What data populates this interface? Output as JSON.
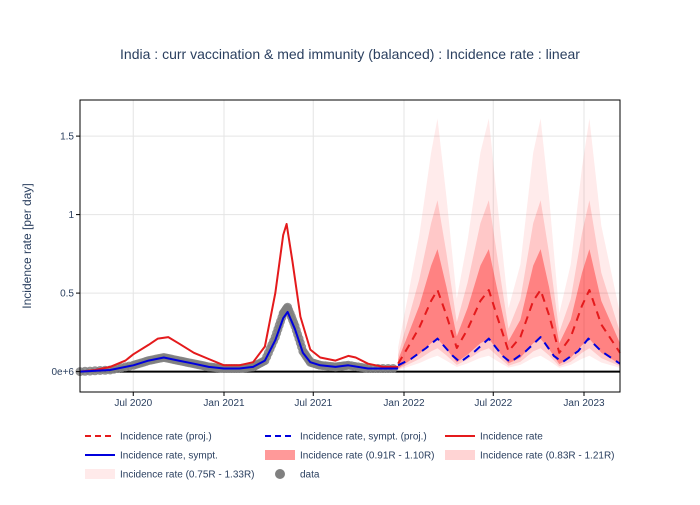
{
  "chart_data": {
    "type": "line",
    "title": "India : curr vaccination & med immunity (balanced) : Incidence rate : linear",
    "xlabel": "",
    "ylabel": "Incidence rate [per day]",
    "x_range": [
      "2020-03-15",
      "2023-03-15"
    ],
    "ylim": [
      -0.13,
      1.73
    ],
    "x_ticks": [
      {
        "date": "2020-07-01",
        "label": "Jul 2020"
      },
      {
        "date": "2021-01-01",
        "label": "Jan 2021"
      },
      {
        "date": "2021-07-01",
        "label": "Jul 2021"
      },
      {
        "date": "2022-01-01",
        "label": "Jan 2022"
      },
      {
        "date": "2022-07-01",
        "label": "Jul 2022"
      },
      {
        "date": "2023-01-01",
        "label": "Jan 2023"
      }
    ],
    "y_ticks": [
      {
        "value": 0,
        "label": "0e+6"
      },
      {
        "value": 0.5,
        "label": "0.5"
      },
      {
        "value": 1,
        "label": "1"
      },
      {
        "value": 1.5,
        "label": "1.5"
      }
    ],
    "series": [
      {
        "name": "Incidence rate (proj.)",
        "style": "dashed",
        "color": "#e41a1c",
        "points": [
          [
            "2021-12-20",
            0.05
          ],
          [
            "2022-01-10",
            0.16
          ],
          [
            "2022-02-01",
            0.28
          ],
          [
            "2022-02-25",
            0.45
          ],
          [
            "2022-03-10",
            0.52
          ],
          [
            "2022-03-28",
            0.36
          ],
          [
            "2022-04-18",
            0.15
          ],
          [
            "2022-05-10",
            0.27
          ],
          [
            "2022-06-05",
            0.45
          ],
          [
            "2022-06-22",
            0.52
          ],
          [
            "2022-07-08",
            0.36
          ],
          [
            "2022-08-01",
            0.13
          ],
          [
            "2022-08-25",
            0.22
          ],
          [
            "2022-09-20",
            0.45
          ],
          [
            "2022-10-05",
            0.52
          ],
          [
            "2022-10-22",
            0.36
          ],
          [
            "2022-11-12",
            0.12
          ],
          [
            "2022-12-05",
            0.22
          ],
          [
            "2022-12-28",
            0.42
          ],
          [
            "2023-01-12",
            0.52
          ],
          [
            "2023-02-05",
            0.3
          ],
          [
            "2023-03-15",
            0.12
          ]
        ]
      },
      {
        "name": "Incidence rate, sympt. (proj.)",
        "style": "dashed",
        "color": "#0000dd",
        "points": [
          [
            "2021-12-20",
            0.04
          ],
          [
            "2022-01-15",
            0.08
          ],
          [
            "2022-02-15",
            0.15
          ],
          [
            "2022-03-10",
            0.21
          ],
          [
            "2022-04-10",
            0.1
          ],
          [
            "2022-04-25",
            0.06
          ],
          [
            "2022-05-25",
            0.13
          ],
          [
            "2022-06-22",
            0.21
          ],
          [
            "2022-07-20",
            0.1
          ],
          [
            "2022-08-05",
            0.06
          ],
          [
            "2022-09-05",
            0.13
          ],
          [
            "2022-10-05",
            0.22
          ],
          [
            "2022-11-01",
            0.1
          ],
          [
            "2022-11-18",
            0.06
          ],
          [
            "2022-12-20",
            0.13
          ],
          [
            "2023-01-10",
            0.21
          ],
          [
            "2023-02-05",
            0.13
          ],
          [
            "2023-03-15",
            0.05
          ]
        ]
      },
      {
        "name": "Incidence rate",
        "style": "solid",
        "color": "#e41a1c",
        "points": [
          [
            "2020-03-15",
            0.0
          ],
          [
            "2020-04-15",
            0.01
          ],
          [
            "2020-05-15",
            0.03
          ],
          [
            "2020-06-15",
            0.07
          ],
          [
            "2020-07-01",
            0.11
          ],
          [
            "2020-08-01",
            0.17
          ],
          [
            "2020-08-20",
            0.21
          ],
          [
            "2020-09-10",
            0.22
          ],
          [
            "2020-10-01",
            0.18
          ],
          [
            "2020-11-01",
            0.12
          ],
          [
            "2020-12-01",
            0.08
          ],
          [
            "2021-01-01",
            0.04
          ],
          [
            "2021-02-01",
            0.04
          ],
          [
            "2021-03-01",
            0.06
          ],
          [
            "2021-03-25",
            0.16
          ],
          [
            "2021-04-15",
            0.5
          ],
          [
            "2021-05-01",
            0.87
          ],
          [
            "2021-05-08",
            0.94
          ],
          [
            "2021-05-20",
            0.7
          ],
          [
            "2021-06-05",
            0.35
          ],
          [
            "2021-06-25",
            0.14
          ],
          [
            "2021-07-15",
            0.09
          ],
          [
            "2021-08-15",
            0.07
          ],
          [
            "2021-09-10",
            0.1
          ],
          [
            "2021-09-25",
            0.09
          ],
          [
            "2021-10-20",
            0.05
          ],
          [
            "2021-11-20",
            0.03
          ],
          [
            "2021-12-20",
            0.03
          ]
        ]
      },
      {
        "name": "Incidence rate, sympt.",
        "style": "solid",
        "color": "#0000dd",
        "points": [
          [
            "2020-03-15",
            0.0
          ],
          [
            "2020-05-15",
            0.01
          ],
          [
            "2020-07-01",
            0.04
          ],
          [
            "2020-08-01",
            0.07
          ],
          [
            "2020-09-01",
            0.09
          ],
          [
            "2020-10-01",
            0.07
          ],
          [
            "2020-11-01",
            0.05
          ],
          [
            "2020-12-01",
            0.03
          ],
          [
            "2021-01-01",
            0.02
          ],
          [
            "2021-02-01",
            0.02
          ],
          [
            "2021-03-01",
            0.03
          ],
          [
            "2021-03-25",
            0.07
          ],
          [
            "2021-04-15",
            0.2
          ],
          [
            "2021-05-01",
            0.34
          ],
          [
            "2021-05-10",
            0.38
          ],
          [
            "2021-05-25",
            0.27
          ],
          [
            "2021-06-10",
            0.12
          ],
          [
            "2021-06-25",
            0.06
          ],
          [
            "2021-07-15",
            0.04
          ],
          [
            "2021-08-15",
            0.03
          ],
          [
            "2021-09-10",
            0.04
          ],
          [
            "2021-10-20",
            0.02
          ],
          [
            "2021-12-20",
            0.02
          ]
        ]
      }
    ],
    "bands": [
      {
        "name": "Incidence rate (0.91R - 1.10R)",
        "opacity": 0.35,
        "peak_scale": 1.5
      },
      {
        "name": "Incidence rate (0.83R - 1.21R)",
        "opacity": 0.15,
        "peak_scale": 2.1
      },
      {
        "name": "Incidence rate (0.75R - 1.33R)",
        "opacity": 0.08,
        "peak_scale": 3.1
      }
    ],
    "data_series": {
      "name": "data",
      "color": "#808080",
      "points": [
        [
          "2020-03-15",
          0.0
        ],
        [
          "2020-05-15",
          0.01
        ],
        [
          "2020-07-01",
          0.04
        ],
        [
          "2020-08-01",
          0.07
        ],
        [
          "2020-09-01",
          0.09
        ],
        [
          "2020-10-01",
          0.07
        ],
        [
          "2020-11-01",
          0.05
        ],
        [
          "2020-12-01",
          0.03
        ],
        [
          "2021-01-01",
          0.02
        ],
        [
          "2021-02-01",
          0.02
        ],
        [
          "2021-03-01",
          0.03
        ],
        [
          "2021-03-25",
          0.07
        ],
        [
          "2021-04-15",
          0.22
        ],
        [
          "2021-05-01",
          0.37
        ],
        [
          "2021-05-10",
          0.41
        ],
        [
          "2021-05-25",
          0.29
        ],
        [
          "2021-06-10",
          0.13
        ],
        [
          "2021-06-25",
          0.06
        ],
        [
          "2021-07-15",
          0.04
        ],
        [
          "2021-08-15",
          0.03
        ],
        [
          "2021-09-10",
          0.04
        ],
        [
          "2021-10-20",
          0.02
        ],
        [
          "2021-12-20",
          0.02
        ]
      ]
    },
    "legend": {
      "position": "bottom",
      "items": [
        {
          "label": "Incidence rate (proj.)",
          "kind": "dash",
          "color": "#e41a1c"
        },
        {
          "label": "Incidence rate, sympt. (proj.)",
          "kind": "dash",
          "color": "#0000dd"
        },
        {
          "label": "Incidence rate",
          "kind": "line",
          "color": "#e41a1c"
        },
        {
          "label": "Incidence rate, sympt.",
          "kind": "line",
          "color": "#0000dd"
        },
        {
          "label": "Incidence rate (0.91R - 1.10R)",
          "kind": "band",
          "color": "#ff9999"
        },
        {
          "label": "Incidence rate (0.83R - 1.21R)",
          "kind": "band",
          "color": "#ffd4d4"
        },
        {
          "label": "Incidence rate (0.75R - 1.33R)",
          "kind": "band",
          "color": "#ffeaea"
        },
        {
          "label": "data",
          "kind": "dot",
          "color": "#808080"
        }
      ]
    }
  }
}
